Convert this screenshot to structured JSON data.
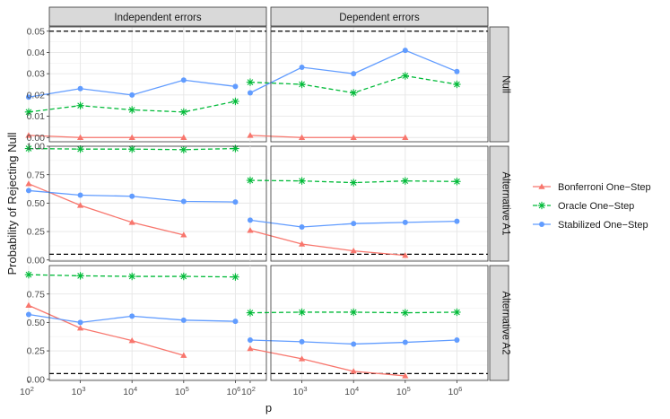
{
  "chart_data": {
    "type": "line",
    "facets": {
      "columns": [
        "Independent errors",
        "Dependent errors"
      ],
      "rows": [
        "Null",
        "Alternative A1",
        "Alternative A2"
      ]
    },
    "x_categories": [
      {
        "base": "10",
        "exp": "2"
      },
      {
        "base": "10",
        "exp": "3"
      },
      {
        "base": "10",
        "exp": "4"
      },
      {
        "base": "10",
        "exp": "5"
      },
      {
        "base": "10",
        "exp": "6"
      }
    ],
    "xlabel": "p",
    "ylabel": "Probability of Rejecting Null",
    "reference_line": 0.05,
    "row_axes": [
      {
        "ylim": [
          -0.002,
          0.052
        ],
        "ticks": [
          0.0,
          0.01,
          0.02,
          0.03,
          0.04,
          0.05
        ],
        "tick_labels": [
          "0.00",
          "0.01",
          "0.02",
          "0.03",
          "0.04",
          "0.05"
        ]
      },
      {
        "ylim": [
          -0.01,
          1.0
        ],
        "ticks": [
          0.0,
          0.25,
          0.5,
          0.75,
          1.0
        ],
        "tick_labels": [
          "0.00",
          "0.25",
          "0.50",
          "0.75",
          "1.00"
        ]
      },
      {
        "ylim": [
          -0.01,
          1.0
        ],
        "ticks": [
          0.0,
          0.25,
          0.5,
          0.75
        ],
        "tick_labels": [
          "0.00",
          "0.25",
          "0.50",
          "0.75"
        ]
      }
    ],
    "legend": [
      {
        "name": "Bonferroni One−Step",
        "color": "#F8766D",
        "marker": "triangle",
        "dash": "solid"
      },
      {
        "name": "Oracle One−Step",
        "color": "#00BA38",
        "marker": "asterisk",
        "dash": "dashed"
      },
      {
        "name": "Stabilized One−Step",
        "color": "#619CFF",
        "marker": "circle",
        "dash": "solid"
      }
    ],
    "panels": [
      {
        "row": 0,
        "col": 0,
        "series": [
          {
            "name": "Bonferroni One−Step",
            "values": [
              0.001,
              0.0,
              0.0,
              0.0,
              null
            ]
          },
          {
            "name": "Oracle One−Step",
            "values": [
              0.012,
              0.015,
              0.013,
              0.012,
              0.017
            ]
          },
          {
            "name": "Stabilized One−Step",
            "values": [
              0.019,
              0.023,
              0.02,
              0.027,
              0.024
            ]
          }
        ]
      },
      {
        "row": 0,
        "col": 1,
        "series": [
          {
            "name": "Bonferroni One−Step",
            "values": [
              0.001,
              0.0,
              0.0,
              0.0,
              null
            ]
          },
          {
            "name": "Oracle One−Step",
            "values": [
              0.026,
              0.025,
              0.021,
              0.029,
              0.025
            ]
          },
          {
            "name": "Stabilized One−Step",
            "values": [
              0.021,
              0.033,
              0.03,
              0.041,
              0.031
            ]
          }
        ]
      },
      {
        "row": 1,
        "col": 0,
        "series": [
          {
            "name": "Bonferroni One−Step",
            "values": [
              0.67,
              0.48,
              0.33,
              0.22,
              null
            ]
          },
          {
            "name": "Oracle One−Step",
            "values": [
              0.98,
              0.975,
              0.975,
              0.97,
              0.98
            ]
          },
          {
            "name": "Stabilized One−Step",
            "values": [
              0.61,
              0.57,
              0.56,
              0.515,
              0.51
            ]
          }
        ]
      },
      {
        "row": 1,
        "col": 1,
        "series": [
          {
            "name": "Bonferroni One−Step",
            "values": [
              0.26,
              0.14,
              0.08,
              0.04,
              null
            ]
          },
          {
            "name": "Oracle One−Step",
            "values": [
              0.7,
              0.695,
              0.68,
              0.695,
              0.69
            ]
          },
          {
            "name": "Stabilized One−Step",
            "values": [
              0.35,
              0.29,
              0.32,
              0.33,
              0.34
            ]
          }
        ]
      },
      {
        "row": 2,
        "col": 0,
        "series": [
          {
            "name": "Bonferroni One−Step",
            "values": [
              0.65,
              0.45,
              0.34,
              0.21,
              null
            ]
          },
          {
            "name": "Oracle One−Step",
            "values": [
              0.92,
              0.91,
              0.905,
              0.905,
              0.9
            ]
          },
          {
            "name": "Stabilized One−Step",
            "values": [
              0.57,
              0.5,
              0.555,
              0.52,
              0.51
            ]
          }
        ]
      },
      {
        "row": 2,
        "col": 1,
        "series": [
          {
            "name": "Bonferroni One−Step",
            "values": [
              0.27,
              0.18,
              0.07,
              0.03,
              null
            ]
          },
          {
            "name": "Oracle One−Step",
            "values": [
              0.585,
              0.59,
              0.59,
              0.585,
              0.59
            ]
          },
          {
            "name": "Stabilized One−Step",
            "values": [
              0.345,
              0.33,
              0.31,
              0.325,
              0.345
            ]
          }
        ]
      }
    ]
  }
}
